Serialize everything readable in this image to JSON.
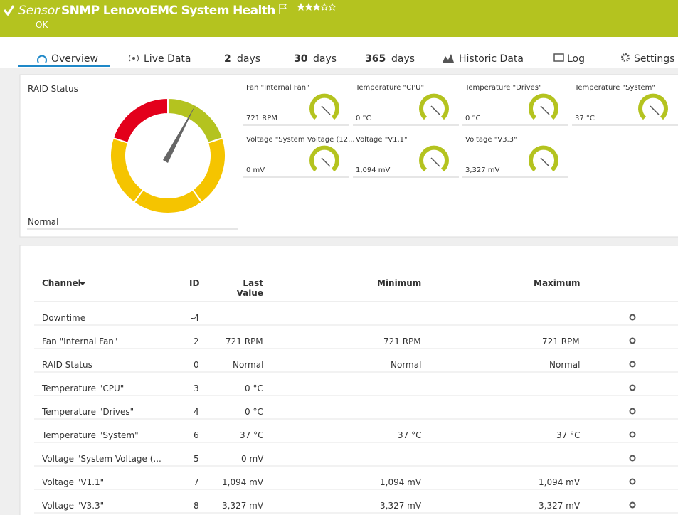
{
  "header": {
    "sensor_label": "Sensor",
    "title": "SNMP LenovoEMC System Health",
    "status": "OK"
  },
  "tabs": [
    {
      "label": "Overview"
    },
    {
      "label": "Live Data"
    },
    {
      "count": "2",
      "label": "days"
    },
    {
      "count": "30",
      "label": "days"
    },
    {
      "count": "365",
      "label": "days"
    },
    {
      "label": "Historic Data"
    },
    {
      "label": "Log"
    },
    {
      "label": "Settings"
    }
  ],
  "raid_gauge": {
    "title": "RAID Status",
    "value": "Normal"
  },
  "gauges": [
    {
      "name": "Fan \"Internal Fan\"",
      "value": "721 RPM"
    },
    {
      "name": "Temperature \"CPU\"",
      "value": "0 °C"
    },
    {
      "name": "Temperature \"Drives\"",
      "value": "0 °C"
    },
    {
      "name": "Temperature \"System\"",
      "value": "37 °C"
    },
    {
      "name": "Voltage \"System Voltage (12...",
      "value": "0 mV"
    },
    {
      "name": "Voltage \"V1.1\"",
      "value": "1,094 mV"
    },
    {
      "name": "Voltage \"V3.3\"",
      "value": "3,327 mV"
    }
  ],
  "table": {
    "columns": {
      "channel": "Channel",
      "id": "ID",
      "last": "Last Value",
      "min": "Minimum",
      "max": "Maximum"
    },
    "rows": [
      {
        "channel": "Downtime",
        "id": "-4"
      },
      {
        "channel": "Fan \"Internal Fan\"",
        "id": "2",
        "last": "721 RPM",
        "min": "721 RPM",
        "max": "721 RPM"
      },
      {
        "channel": "RAID Status",
        "id": "0",
        "last": "Normal",
        "min": "Normal",
        "max": "Normal"
      },
      {
        "channel": "Temperature \"CPU\"",
        "id": "3",
        "last": "0 °C"
      },
      {
        "channel": "Temperature \"Drives\"",
        "id": "4",
        "last": "0 °C"
      },
      {
        "channel": "Temperature \"System\"",
        "id": "6",
        "last": "37 °C",
        "min": "37 °C",
        "max": "37 °C"
      },
      {
        "channel": "Voltage \"System Voltage (...",
        "id": "5",
        "last": "0 mV"
      },
      {
        "channel": "Voltage \"V1.1\"",
        "id": "7",
        "last": "1,094 mV",
        "min": "1,094 mV",
        "max": "1,094 mV"
      },
      {
        "channel": "Voltage \"V3.3\"",
        "id": "8",
        "last": "3,327 mV",
        "min": "3,327 mV",
        "max": "3,327 mV"
      }
    ]
  }
}
